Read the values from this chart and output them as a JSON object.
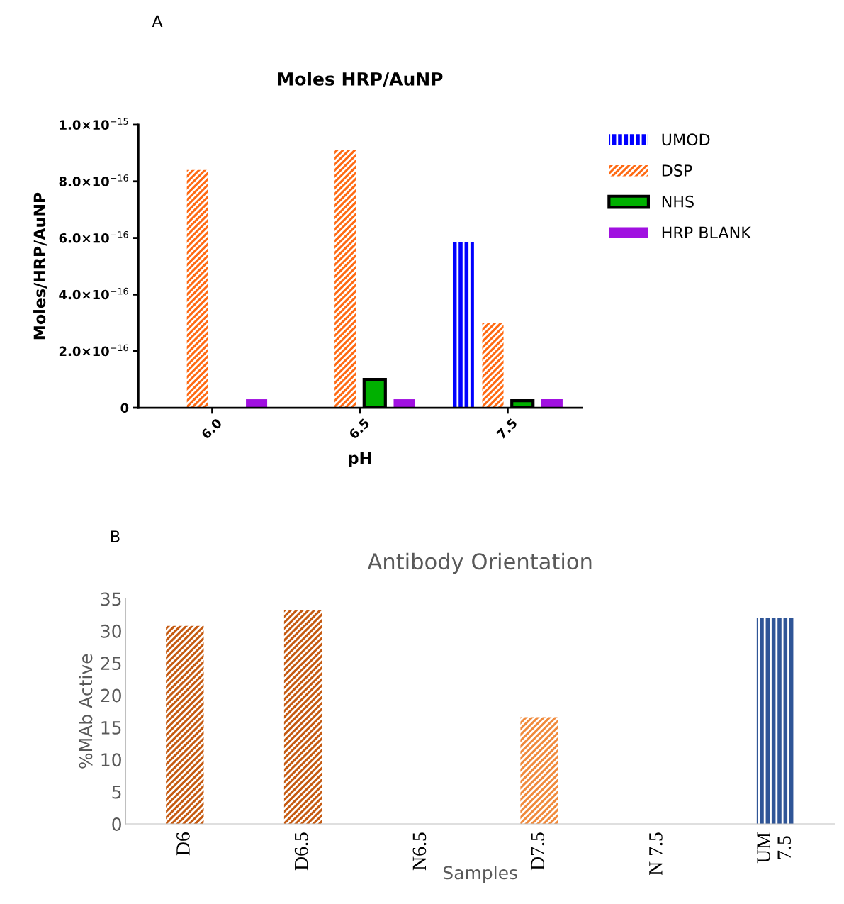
{
  "chart_data": [
    {
      "type": "bar",
      "title": "Moles HRP/AuNP",
      "xlabel": "pH",
      "ylabel": "Moles/HRP/AuNP",
      "annotations": [
        "A"
      ],
      "categories": [
        "6.0",
        "6.5",
        "7.5"
      ],
      "series": [
        {
          "name": "UMOD",
          "color": "#0000ff",
          "values": [
            null,
            null,
            5.85e-16
          ]
        },
        {
          "name": "DSP",
          "color": "#ff6a13",
          "values": [
            8.4e-16,
            9.1e-16,
            3e-16
          ]
        },
        {
          "name": "NHS",
          "color": "#00b000",
          "values": [
            null,
            1e-16,
            2.5e-17
          ]
        },
        {
          "name": "HRP BLANK",
          "color": "#a010e0",
          "values": [
            3e-17,
            3e-17,
            3e-17
          ]
        }
      ],
      "ylim": [
        0,
        1e-15
      ],
      "yticks": [
        0,
        {
          "value": 2e-16,
          "label": "2.0×10$^{−16}$"
        },
        {
          "value": 4e-16,
          "label": "4.0×10$^{−16}$"
        },
        {
          "value": 6e-16,
          "label": "6.0×10$^{−16}$"
        },
        {
          "value": 8e-16,
          "label": "8.0×10$^{−16}$"
        },
        {
          "value": 1e-15,
          "label": "1.0×10$^{−15}$"
        }
      ],
      "legend": "top right",
      "grid": false
    },
    {
      "type": "bar",
      "title": "Antibody Orientation",
      "xlabel": "Samples",
      "ylabel": "%MAb Active",
      "annotations": [
        "B"
      ],
      "categories": [
        "D6",
        "D6.5",
        "N6.5",
        "D7.5",
        "N 7.5",
        "UM\n7.5"
      ],
      "values": [
        30.8,
        33.2,
        null,
        16.6,
        null,
        32.0
      ],
      "colors": [
        "#c55a11",
        "#c55a11",
        "#c55a11",
        "#f08a3c",
        "#f08a3c",
        "#2f5597"
      ],
      "ylim": [
        0,
        35
      ],
      "yticks": [
        0,
        5,
        10,
        15,
        20,
        25,
        30,
        35
      ],
      "grid": false
    }
  ]
}
